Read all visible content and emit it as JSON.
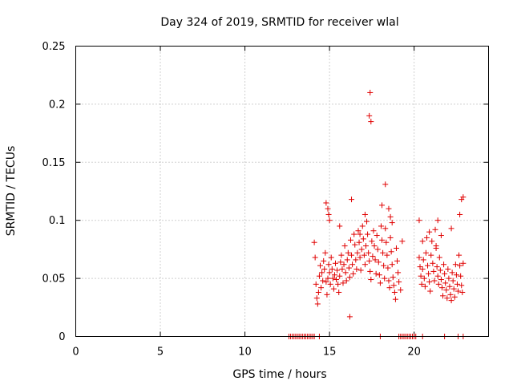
{
  "chart_data": {
    "type": "scatter",
    "title": "Day 324 of 2019, SRMTID for receiver wlal",
    "xlabel": "GPS time / hours",
    "ylabel": "SRMTID / TECUs",
    "xlim": [
      0,
      24.4
    ],
    "ylim": [
      0,
      0.25
    ],
    "xticks": [
      0,
      5,
      10,
      15,
      20
    ],
    "xtick_labels": [
      "0",
      "5",
      "10",
      "15",
      "20"
    ],
    "yticks": [
      0,
      0.05,
      0.1,
      0.15,
      0.2,
      0.25
    ],
    "ytick_labels": [
      "0",
      "0.05",
      "0.1",
      "0.15",
      "0.2",
      "0.25"
    ],
    "grid": true,
    "marker": "+",
    "color": "#e00000",
    "series": [
      {
        "name": "SRMTID",
        "x": [
          12.6,
          12.7,
          12.8,
          12.9,
          13.0,
          13.1,
          13.2,
          13.3,
          13.4,
          13.5,
          13.6,
          13.7,
          13.8,
          13.9,
          14.0,
          14.1,
          14.4,
          18.0,
          19.1,
          19.2,
          19.3,
          19.4,
          19.5,
          19.6,
          19.7,
          19.8,
          19.9,
          20.0,
          20.1,
          20.5,
          21.8,
          22.6,
          22.9,
          14.1,
          14.15,
          14.2,
          14.25,
          14.3,
          14.35,
          14.4,
          14.45,
          14.5,
          14.55,
          14.6,
          14.65,
          14.7,
          14.75,
          14.8,
          14.85,
          14.9,
          14.95,
          15.0,
          15.05,
          15.1,
          15.15,
          15.2,
          15.25,
          15.3,
          15.35,
          15.4,
          15.45,
          15.5,
          15.55,
          15.6,
          15.65,
          15.7,
          15.75,
          15.8,
          15.85,
          15.9,
          15.95,
          16.0,
          16.05,
          16.1,
          16.15,
          16.2,
          16.25,
          16.3,
          16.35,
          16.4,
          16.45,
          16.5,
          16.55,
          16.6,
          16.65,
          16.7,
          16.75,
          16.8,
          16.85,
          16.9,
          16.95,
          17.0,
          17.05,
          17.1,
          17.15,
          17.2,
          17.25,
          17.3,
          17.35,
          17.4,
          17.45,
          17.5,
          17.55,
          17.6,
          17.65,
          17.7,
          17.75,
          17.8,
          17.85,
          17.9,
          17.95,
          18.0,
          18.05,
          18.1,
          18.15,
          18.2,
          18.25,
          18.3,
          18.35,
          18.4,
          18.45,
          18.5,
          18.55,
          18.6,
          18.65,
          18.7,
          18.75,
          18.8,
          18.85,
          18.9,
          18.95,
          19.0,
          19.05,
          19.1,
          19.2,
          14.8,
          14.9,
          14.95,
          15.0,
          16.3,
          17.35,
          17.4,
          17.45,
          18.3,
          18.5,
          18.6,
          18.7,
          19.3,
          16.2,
          17.1,
          18.1,
          15.6,
          16.8,
          20.3,
          20.35,
          20.4,
          20.45,
          20.5,
          20.55,
          20.6,
          20.65,
          20.7,
          20.75,
          20.8,
          20.85,
          20.9,
          20.95,
          21.0,
          21.05,
          21.1,
          21.15,
          21.2,
          21.25,
          21.3,
          21.35,
          21.4,
          21.45,
          21.5,
          21.55,
          21.6,
          21.65,
          21.7,
          21.75,
          21.8,
          21.85,
          21.9,
          21.95,
          22.0,
          22.05,
          22.1,
          22.15,
          22.2,
          22.25,
          22.3,
          22.35,
          22.4,
          22.45,
          22.5,
          22.55,
          22.6,
          22.65,
          22.7,
          22.75,
          22.8,
          22.85,
          22.9,
          20.3,
          20.5,
          20.9,
          21.3,
          21.4,
          21.6,
          22.2,
          22.7,
          22.8,
          22.9
        ],
        "y": [
          0,
          0,
          0,
          0,
          0,
          0,
          0,
          0,
          0,
          0,
          0,
          0,
          0,
          0,
          0,
          0,
          0,
          0,
          0,
          0,
          0,
          0,
          0,
          0,
          0,
          0,
          0,
          0,
          0,
          0,
          0,
          0,
          0,
          0.081,
          0.068,
          0.045,
          0.033,
          0.028,
          0.038,
          0.052,
          0.061,
          0.042,
          0.055,
          0.048,
          0.065,
          0.058,
          0.072,
          0.047,
          0.036,
          0.05,
          0.062,
          0.055,
          0.045,
          0.068,
          0.058,
          0.05,
          0.041,
          0.053,
          0.063,
          0.049,
          0.057,
          0.045,
          0.038,
          0.052,
          0.064,
          0.07,
          0.058,
          0.046,
          0.062,
          0.078,
          0.055,
          0.048,
          0.066,
          0.072,
          0.059,
          0.051,
          0.083,
          0.07,
          0.062,
          0.054,
          0.088,
          0.079,
          0.066,
          0.058,
          0.072,
          0.091,
          0.081,
          0.068,
          0.057,
          0.075,
          0.095,
          0.084,
          0.07,
          0.062,
          0.078,
          0.099,
          0.088,
          0.072,
          0.065,
          0.056,
          0.049,
          0.082,
          0.069,
          0.091,
          0.078,
          0.066,
          0.054,
          0.087,
          0.075,
          0.064,
          0.053,
          0.046,
          0.095,
          0.083,
          0.072,
          0.061,
          0.05,
          0.093,
          0.081,
          0.07,
          0.059,
          0.048,
          0.042,
          0.085,
          0.073,
          0.062,
          0.051,
          0.044,
          0.038,
          0.032,
          0.076,
          0.065,
          0.055,
          0.047,
          0.04,
          0.115,
          0.11,
          0.105,
          0.1,
          0.118,
          0.19,
          0.21,
          0.185,
          0.131,
          0.11,
          0.103,
          0.098,
          0.082,
          0.017,
          0.105,
          0.113,
          0.095,
          0.088,
          0.068,
          0.06,
          0.052,
          0.045,
          0.058,
          0.066,
          0.05,
          0.043,
          0.072,
          0.085,
          0.061,
          0.054,
          0.047,
          0.039,
          0.07,
          0.082,
          0.063,
          0.056,
          0.048,
          0.092,
          0.076,
          0.06,
          0.052,
          0.045,
          0.068,
          0.057,
          0.049,
          0.042,
          0.035,
          0.062,
          0.054,
          0.046,
          0.04,
          0.033,
          0.058,
          0.05,
          0.043,
          0.036,
          0.031,
          0.055,
          0.048,
          0.041,
          0.034,
          0.062,
          0.053,
          0.045,
          0.039,
          0.07,
          0.061,
          0.052,
          0.044,
          0.038,
          0.063,
          0.1,
          0.082,
          0.09,
          0.078,
          0.1,
          0.087,
          0.093,
          0.105,
          0.118,
          0.12
        ]
      }
    ]
  }
}
